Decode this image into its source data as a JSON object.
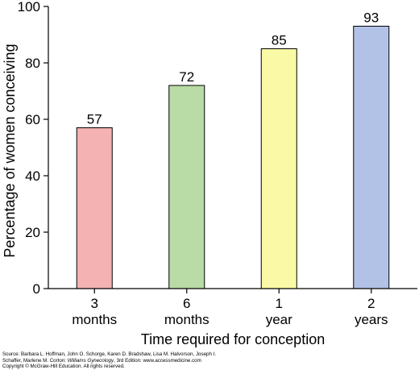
{
  "chart_data": {
    "type": "bar",
    "categories": [
      [
        "3",
        "months"
      ],
      [
        "6",
        "months"
      ],
      [
        "1",
        "year"
      ],
      [
        "2",
        "years"
      ]
    ],
    "values": [
      57,
      72,
      85,
      93
    ],
    "data_labels": [
      "57",
      "72",
      "85",
      "93"
    ],
    "bar_colors": [
      "#f4b2b2",
      "#b9dba5",
      "#fafaa6",
      "#b2c2e6"
    ],
    "xlabel": "Time required for conception",
    "ylabel": "Percentage of women conceiving",
    "ylim": [
      0,
      100
    ],
    "yticks": [
      "0",
      "20",
      "40",
      "60",
      "80",
      "100"
    ],
    "grid": false
  },
  "source": {
    "line1": "Source: Barbara L. Hoffman, John O. Schorge, Karen D. Bradshaw, Lisa M. Halvorson, Joseph I.",
    "line2_prefix": "Schaffer, Marlene M. Corton: ",
    "line2_title": "Williams Gynecology",
    "line2_suffix": ", 3rd Edition: www.accessmedicine.com",
    "line3": "Copyright © McGraw-Hill Education. All rights reserved."
  }
}
